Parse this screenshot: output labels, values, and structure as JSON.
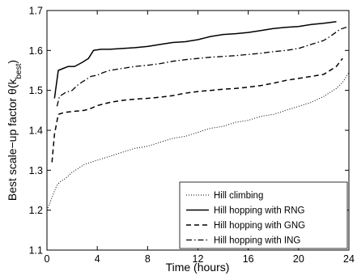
{
  "chart_data": {
    "type": "line",
    "xlabel": "Time (hours)",
    "ylabel": "Best scale−up factor  θ(k",
    "ylabel_sub": "best",
    "ylabel_close": ")",
    "xlim": [
      0,
      24
    ],
    "ylim": [
      1.1,
      1.7
    ],
    "xticks": [
      0,
      4,
      8,
      12,
      16,
      20,
      24
    ],
    "xtick_labels": [
      "0",
      "4",
      "8",
      "12",
      "16",
      "20",
      "24"
    ],
    "yticks": [
      1.1,
      1.2,
      1.3,
      1.4,
      1.5,
      1.6,
      1.7
    ],
    "ytick_labels": [
      "1.1",
      "1.2",
      "1.3",
      "1.4",
      "1.5",
      "1.6",
      "1.7"
    ],
    "grid": false,
    "legend_position": "bottom-right",
    "series": [
      {
        "name": "Hill climbing",
        "style": "dotted",
        "points": [
          [
            0,
            1.2
          ],
          [
            0.25,
            1.22
          ],
          [
            0.5,
            1.24
          ],
          [
            0.75,
            1.26
          ],
          [
            1,
            1.27
          ],
          [
            1.5,
            1.28
          ],
          [
            2,
            1.295
          ],
          [
            2.5,
            1.305
          ],
          [
            3,
            1.315
          ],
          [
            3.5,
            1.32
          ],
          [
            4,
            1.325
          ],
          [
            5,
            1.335
          ],
          [
            6,
            1.345
          ],
          [
            7,
            1.355
          ],
          [
            8,
            1.36
          ],
          [
            9,
            1.37
          ],
          [
            10,
            1.38
          ],
          [
            11,
            1.385
          ],
          [
            12,
            1.395
          ],
          [
            13,
            1.405
          ],
          [
            14,
            1.41
          ],
          [
            15,
            1.42
          ],
          [
            16,
            1.425
          ],
          [
            17,
            1.435
          ],
          [
            18,
            1.44
          ],
          [
            19,
            1.45
          ],
          [
            20,
            1.46
          ],
          [
            21,
            1.47
          ],
          [
            22,
            1.485
          ],
          [
            23,
            1.505
          ],
          [
            23.5,
            1.52
          ],
          [
            24,
            1.545
          ]
        ]
      },
      {
        "name": "Hill hopping with RNG",
        "style": "solid",
        "points": [
          [
            0.6,
            1.48
          ],
          [
            0.9,
            1.55
          ],
          [
            1.3,
            1.555
          ],
          [
            1.7,
            1.56
          ],
          [
            2.2,
            1.56
          ],
          [
            2.8,
            1.57
          ],
          [
            3.3,
            1.58
          ],
          [
            3.7,
            1.6
          ],
          [
            4.3,
            1.603
          ],
          [
            5,
            1.603
          ],
          [
            6,
            1.605
          ],
          [
            7,
            1.607
          ],
          [
            8,
            1.61
          ],
          [
            9,
            1.615
          ],
          [
            10,
            1.62
          ],
          [
            11,
            1.622
          ],
          [
            12,
            1.627
          ],
          [
            13,
            1.635
          ],
          [
            14,
            1.64
          ],
          [
            15,
            1.642
          ],
          [
            16,
            1.645
          ],
          [
            17,
            1.65
          ],
          [
            18,
            1.655
          ],
          [
            19,
            1.658
          ],
          [
            20,
            1.66
          ],
          [
            21,
            1.665
          ],
          [
            22,
            1.668
          ],
          [
            23,
            1.672
          ]
        ]
      },
      {
        "name": "Hill hopping with GNG",
        "style": "dashed",
        "points": [
          [
            0.4,
            1.32
          ],
          [
            0.6,
            1.39
          ],
          [
            0.9,
            1.44
          ],
          [
            1.4,
            1.445
          ],
          [
            2,
            1.447
          ],
          [
            3,
            1.45
          ],
          [
            3.5,
            1.455
          ],
          [
            4,
            1.462
          ],
          [
            5,
            1.47
          ],
          [
            6,
            1.475
          ],
          [
            7,
            1.478
          ],
          [
            8,
            1.48
          ],
          [
            9,
            1.483
          ],
          [
            10,
            1.487
          ],
          [
            11,
            1.493
          ],
          [
            12,
            1.497
          ],
          [
            13,
            1.5
          ],
          [
            14,
            1.503
          ],
          [
            15,
            1.505
          ],
          [
            16,
            1.508
          ],
          [
            17,
            1.512
          ],
          [
            18,
            1.518
          ],
          [
            19,
            1.525
          ],
          [
            20,
            1.53
          ],
          [
            21,
            1.535
          ],
          [
            22,
            1.54
          ],
          [
            23,
            1.56
          ],
          [
            23.5,
            1.58
          ]
        ]
      },
      {
        "name": "Hill hopping with ING",
        "style": "dashdot",
        "points": [
          [
            0.8,
            1.46
          ],
          [
            1,
            1.485
          ],
          [
            1.5,
            1.495
          ],
          [
            2,
            1.5
          ],
          [
            2.5,
            1.515
          ],
          [
            3,
            1.525
          ],
          [
            3.5,
            1.535
          ],
          [
            4,
            1.538
          ],
          [
            4.5,
            1.545
          ],
          [
            5,
            1.55
          ],
          [
            6,
            1.555
          ],
          [
            7,
            1.56
          ],
          [
            8,
            1.563
          ],
          [
            9,
            1.567
          ],
          [
            10,
            1.573
          ],
          [
            11,
            1.577
          ],
          [
            12,
            1.58
          ],
          [
            13,
            1.583
          ],
          [
            14,
            1.585
          ],
          [
            15,
            1.587
          ],
          [
            16,
            1.59
          ],
          [
            17,
            1.593
          ],
          [
            18,
            1.597
          ],
          [
            19,
            1.6
          ],
          [
            20,
            1.605
          ],
          [
            21,
            1.615
          ],
          [
            22,
            1.625
          ],
          [
            22.5,
            1.635
          ],
          [
            23.3,
            1.653
          ],
          [
            24,
            1.66
          ]
        ]
      }
    ]
  }
}
